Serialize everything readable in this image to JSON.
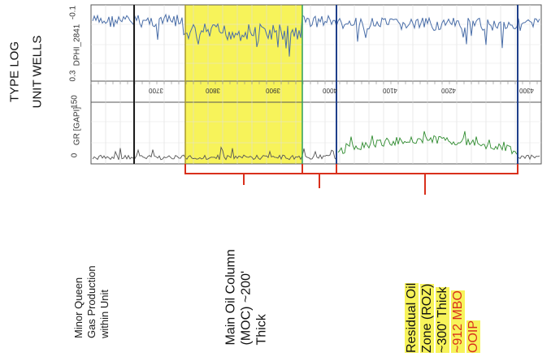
{
  "title": {
    "line1": "TYPE LOG",
    "line2": "UNIT WELLS"
  },
  "tracks": {
    "dphi": {
      "name": "DPHI_2841",
      "scale_left": "0.3",
      "scale_right": "-0.1"
    },
    "gr": {
      "name": "GR [GAPI]",
      "scale_left": "0",
      "scale_right": "150"
    }
  },
  "depth_labels": [
    "3700",
    "3800",
    "3900",
    "4000",
    "4100",
    "4200",
    "4300"
  ],
  "annotations": {
    "minor_queen": {
      "line1": "Minor Queen",
      "line2": "Gas Production",
      "line3": "within Unit"
    },
    "moc": {
      "line1": "Main Oil Column",
      "line2": "(MOC) ~200'",
      "line3": "Thick"
    },
    "roz": {
      "line1": "Residual Oil",
      "line2": "Zone (ROZ)",
      "line3": "~300' Thick",
      "line4": "~912 MBO",
      "line5": "OOIP"
    }
  },
  "colors": {
    "highlight": "#f7f35a",
    "bracket": "#d9301c",
    "dphi_curve": "#4a6ea8",
    "gr_curve": "#2e8b2e",
    "marker_dark": "#1a1a1a",
    "marker_green": "#2e9e5a",
    "marker_blue": "#1f3f8a",
    "marker_olive": "#a89a2a"
  }
}
